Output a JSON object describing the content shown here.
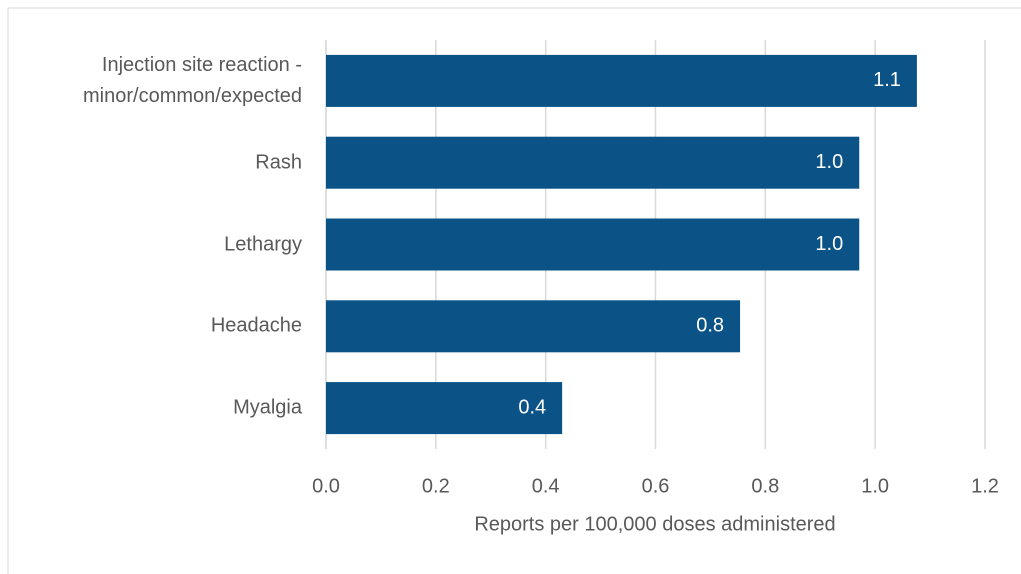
{
  "chart_data": {
    "type": "barh",
    "categories": [
      "Injection site reaction - minor/common/expected",
      "Rash",
      "Lethargy",
      "Headache",
      "Myalgia"
    ],
    "values": [
      1.076,
      0.971,
      0.971,
      0.754,
      0.43
    ],
    "value_labels": [
      "1.1",
      "1.0",
      "1.0",
      "0.8",
      "0.4"
    ],
    "color": "#0b5286",
    "xlabel": "Reports per 100,000 doses administered",
    "xlim": [
      0,
      1.2
    ],
    "xticks": [
      {
        "value": 0,
        "label": "0.0"
      },
      0.2,
      0.4,
      0.6,
      0.8,
      {
        "value": 1,
        "label": "1.0"
      },
      1.2
    ],
    "grid": true
  }
}
